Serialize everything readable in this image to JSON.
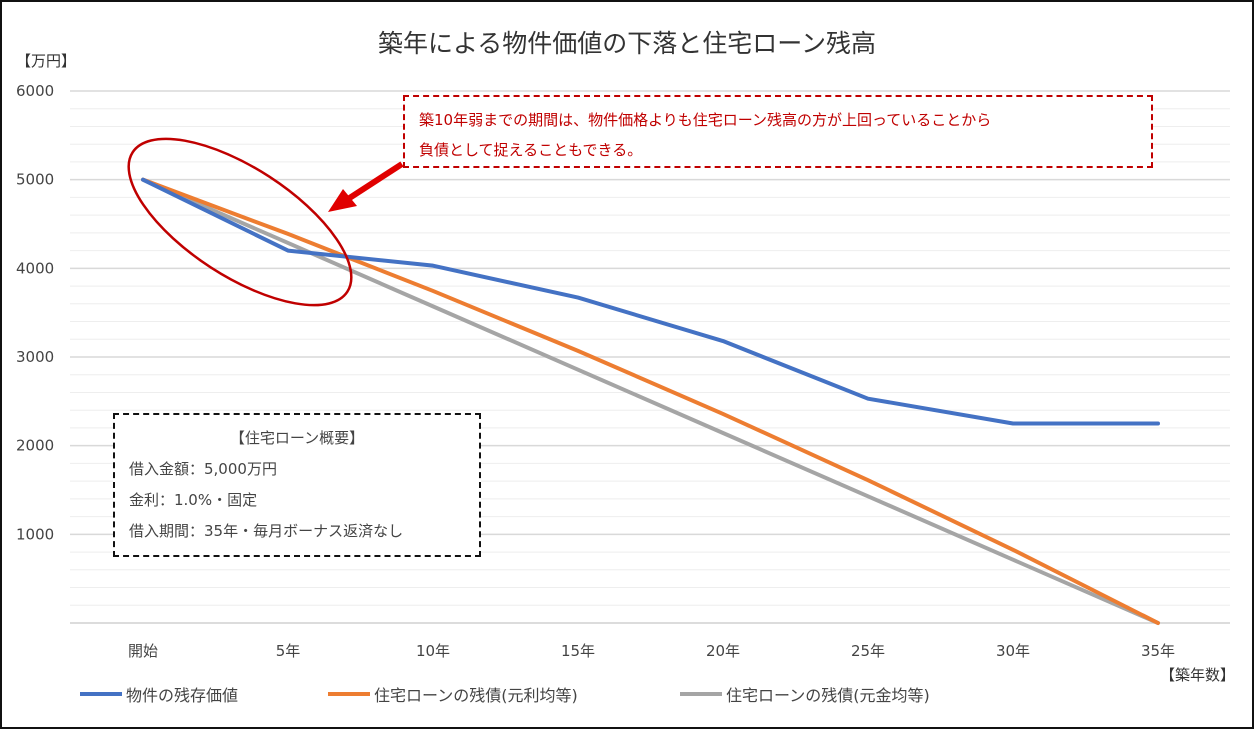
{
  "chart_data": {
    "type": "line",
    "title": "築年による物件価値の下落と住宅ローン残高",
    "ylabel": "【万円】",
    "xlabel": "【築年数】",
    "categories": [
      "開始",
      "5年",
      "10年",
      "15年",
      "20年",
      "25年",
      "30年",
      "35年"
    ],
    "ylim": [
      0,
      6000
    ],
    "yticks": [
      "1000",
      "2000",
      "3000",
      "4000",
      "5000",
      "6000"
    ],
    "grid": {
      "major": true,
      "minor": true
    },
    "legend_position": "bottom",
    "series": [
      {
        "name": "物件の残存価値",
        "color": "#4472c4",
        "values": [
          5000,
          4200,
          4030,
          3670,
          3180,
          2530,
          2250,
          2250
        ]
      },
      {
        "name": "住宅ローンの残債(元利均等)",
        "color": "#ed7d31",
        "values": [
          5000,
          4388,
          3745,
          3069,
          2358,
          1611,
          826,
          0
        ]
      },
      {
        "name": "住宅ローンの残債(元金均等)",
        "color": "#a5a5a5",
        "values": [
          5000,
          4286,
          3571,
          2857,
          2143,
          1429,
          714,
          0
        ]
      }
    ]
  },
  "annotation": {
    "line1": "築10年弱までの期間は、物件価格よりも住宅ローン残高の方が上回っていることから",
    "line2": "負債として捉えることもできる。",
    "color": "#c00000"
  },
  "info_box": {
    "heading": "【住宅ローン概要】",
    "lines": [
      "借入金額：5,000万円",
      "金利：1.0%・固定",
      "借入期間：35年・毎月ボーナス返済なし"
    ]
  }
}
